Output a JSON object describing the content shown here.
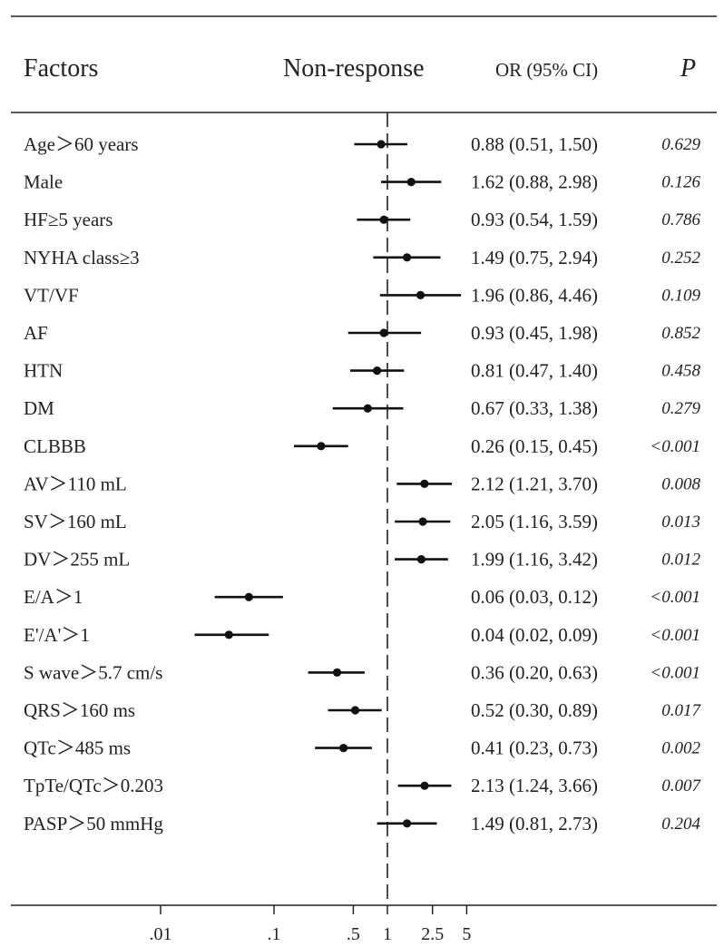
{
  "chart_data": {
    "type": "forest",
    "headers": {
      "factors": "Factors",
      "group": "Non-response",
      "or": "OR (95% CI)",
      "p": "P"
    },
    "x_scale": "log",
    "reference_line": 1,
    "x_ticks": [
      {
        "value": 0.01,
        "label": ".01"
      },
      {
        "value": 0.1,
        "label": ".1"
      },
      {
        "value": 0.5,
        "label": ".5"
      },
      {
        "value": 1,
        "label": "1"
      },
      {
        "value": 2.5,
        "label": "2.5"
      },
      {
        "value": 5,
        "label": "5"
      }
    ],
    "rows": [
      {
        "factor": "Age＞60 years",
        "or": 0.88,
        "lower": 0.51,
        "upper": 1.5,
        "or_text": "0.88 (0.51, 1.50)",
        "p": "0.629"
      },
      {
        "factor": "Male",
        "or": 1.62,
        "lower": 0.88,
        "upper": 2.98,
        "or_text": "1.62 (0.88, 2.98)",
        "p": "0.126"
      },
      {
        "factor": "HF≥5 years",
        "or": 0.93,
        "lower": 0.54,
        "upper": 1.59,
        "or_text": "0.93 (0.54, 1.59)",
        "p": "0.786"
      },
      {
        "factor": "NYHA class≥3",
        "or": 1.49,
        "lower": 0.75,
        "upper": 2.94,
        "or_text": "1.49 (0.75, 2.94)",
        "p": "0.252"
      },
      {
        "factor": "VT/VF",
        "or": 1.96,
        "lower": 0.86,
        "upper": 4.46,
        "or_text": "1.96 (0.86, 4.46)",
        "p": "0.109"
      },
      {
        "factor": "AF",
        "or": 0.93,
        "lower": 0.45,
        "upper": 1.98,
        "or_text": "0.93 (0.45, 1.98)",
        "p": "0.852"
      },
      {
        "factor": "HTN",
        "or": 0.81,
        "lower": 0.47,
        "upper": 1.4,
        "or_text": "0.81 (0.47, 1.40)",
        "p": "0.458"
      },
      {
        "factor": "DM",
        "or": 0.67,
        "lower": 0.33,
        "upper": 1.38,
        "or_text": "0.67 (0.33, 1.38)",
        "p": "0.279"
      },
      {
        "factor": "CLBBB",
        "or": 0.26,
        "lower": 0.15,
        "upper": 0.45,
        "or_text": "0.26 (0.15, 0.45)",
        "p": "<0.001"
      },
      {
        "factor": "AV＞110 mL",
        "or": 2.12,
        "lower": 1.21,
        "upper": 3.7,
        "or_text": "2.12 (1.21, 3.70)",
        "p": "0.008"
      },
      {
        "factor": "SV＞160 mL",
        "or": 2.05,
        "lower": 1.16,
        "upper": 3.59,
        "or_text": "2.05 (1.16, 3.59)",
        "p": "0.013"
      },
      {
        "factor": "DV＞255 mL",
        "or": 1.99,
        "lower": 1.16,
        "upper": 3.42,
        "or_text": "1.99 (1.16, 3.42)",
        "p": "0.012"
      },
      {
        "factor": "E/A＞1",
        "or": 0.06,
        "lower": 0.03,
        "upper": 0.12,
        "or_text": "0.06 (0.03, 0.12)",
        "p": "<0.001"
      },
      {
        "factor": "E'/A'＞1",
        "or": 0.04,
        "lower": 0.02,
        "upper": 0.09,
        "or_text": "0.04 (0.02, 0.09)",
        "p": "<0.001"
      },
      {
        "factor": "S wave＞5.7 cm/s",
        "or": 0.36,
        "lower": 0.2,
        "upper": 0.63,
        "or_text": "0.36 (0.20, 0.63)",
        "p": "<0.001"
      },
      {
        "factor": "QRS＞160 ms",
        "or": 0.52,
        "lower": 0.3,
        "upper": 0.89,
        "or_text": "0.52 (0.30, 0.89)",
        "p": "0.017"
      },
      {
        "factor": "QTc＞485 ms",
        "or": 0.41,
        "lower": 0.23,
        "upper": 0.73,
        "or_text": "0.41 (0.23, 0.73)",
        "p": "0.002"
      },
      {
        "factor": "TpTe/QTc＞0.203",
        "or": 2.13,
        "lower": 1.24,
        "upper": 3.66,
        "or_text": "2.13 (1.24, 3.66)",
        "p": "0.007"
      },
      {
        "factor": "PASP＞50 mmHg",
        "or": 1.49,
        "lower": 0.81,
        "upper": 2.73,
        "or_text": "1.49 (0.81, 2.73)",
        "p": "0.204"
      }
    ]
  }
}
